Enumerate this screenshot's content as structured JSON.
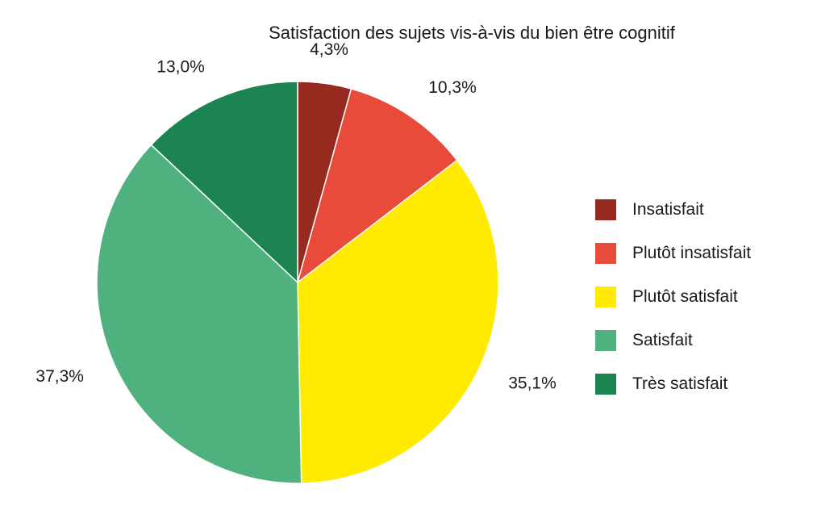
{
  "chart_data": {
    "type": "pie",
    "title": "Satisfaction des sujets vis-à-vis du bien être cognitif",
    "categories": [
      "Insatisfait",
      "Plutôt insatisfait",
      "Plutôt satisfait",
      "Satisfait",
      "Très satisfait"
    ],
    "values": [
      4.3,
      10.3,
      35.1,
      37.3,
      13.0
    ],
    "value_labels": [
      "4,3%",
      "10,3%",
      "35,1%",
      "37,3%",
      "13,0%"
    ],
    "colors": [
      "#962A1F",
      "#E84B3A",
      "#FFEA00",
      "#4FB27E",
      "#1C8450"
    ],
    "start_angle": "12 o'clock",
    "direction": "clockwise",
    "legend_placement": "right"
  }
}
